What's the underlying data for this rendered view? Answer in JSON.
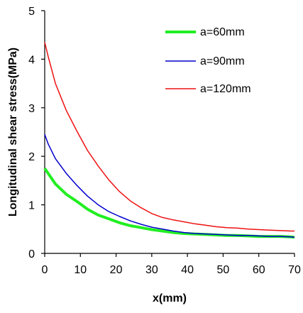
{
  "chart_data": {
    "type": "line",
    "xlabel": "x(mm)",
    "ylabel": "Longitudinal shear stress(MPa)",
    "xlim": [
      0,
      70
    ],
    "ylim": [
      0,
      5
    ],
    "xticks": [
      "0",
      "10",
      "20",
      "30",
      "40",
      "50",
      "60",
      "70"
    ],
    "yticks": [
      "0",
      "1",
      "2",
      "3",
      "4",
      "5"
    ],
    "grid": false,
    "legend_position": "top-right",
    "series": [
      {
        "name": "a=60mm",
        "color": "#22ee22",
        "x": [
          0,
          3,
          6,
          9,
          12,
          15,
          18,
          21,
          24,
          27,
          30,
          33,
          36,
          39,
          42,
          45,
          48,
          51,
          54,
          57,
          60,
          63,
          66,
          69,
          70
        ],
        "values": [
          1.75,
          1.43,
          1.22,
          1.07,
          0.91,
          0.79,
          0.71,
          0.63,
          0.57,
          0.53,
          0.49,
          0.46,
          0.43,
          0.41,
          0.4,
          0.39,
          0.38,
          0.37,
          0.37,
          0.36,
          0.35,
          0.35,
          0.35,
          0.34,
          0.33
        ]
      },
      {
        "name": "a=90mm",
        "color": "#0000cc",
        "x": [
          0,
          1,
          3,
          6,
          9,
          12,
          15,
          18,
          21,
          24,
          27,
          30,
          33,
          36,
          39,
          42,
          45,
          48,
          51,
          54,
          57,
          60,
          63,
          66,
          69,
          70
        ],
        "values": [
          2.45,
          2.25,
          1.95,
          1.65,
          1.4,
          1.18,
          1.0,
          0.86,
          0.76,
          0.67,
          0.6,
          0.54,
          0.5,
          0.46,
          0.43,
          0.41,
          0.4,
          0.39,
          0.38,
          0.37,
          0.37,
          0.36,
          0.35,
          0.35,
          0.34,
          0.33
        ]
      },
      {
        "name": "a=120mm",
        "color": "#ee1111",
        "x": [
          0,
          1,
          3,
          6,
          9,
          12,
          15,
          18,
          21,
          24,
          27,
          30,
          33,
          36,
          39,
          42,
          45,
          48,
          51,
          54,
          57,
          60,
          63,
          66,
          69,
          70
        ],
        "values": [
          4.35,
          4.05,
          3.5,
          2.95,
          2.52,
          2.12,
          1.8,
          1.51,
          1.27,
          1.08,
          0.94,
          0.82,
          0.74,
          0.69,
          0.65,
          0.61,
          0.58,
          0.55,
          0.53,
          0.52,
          0.5,
          0.49,
          0.48,
          0.47,
          0.46,
          0.46
        ]
      }
    ]
  }
}
